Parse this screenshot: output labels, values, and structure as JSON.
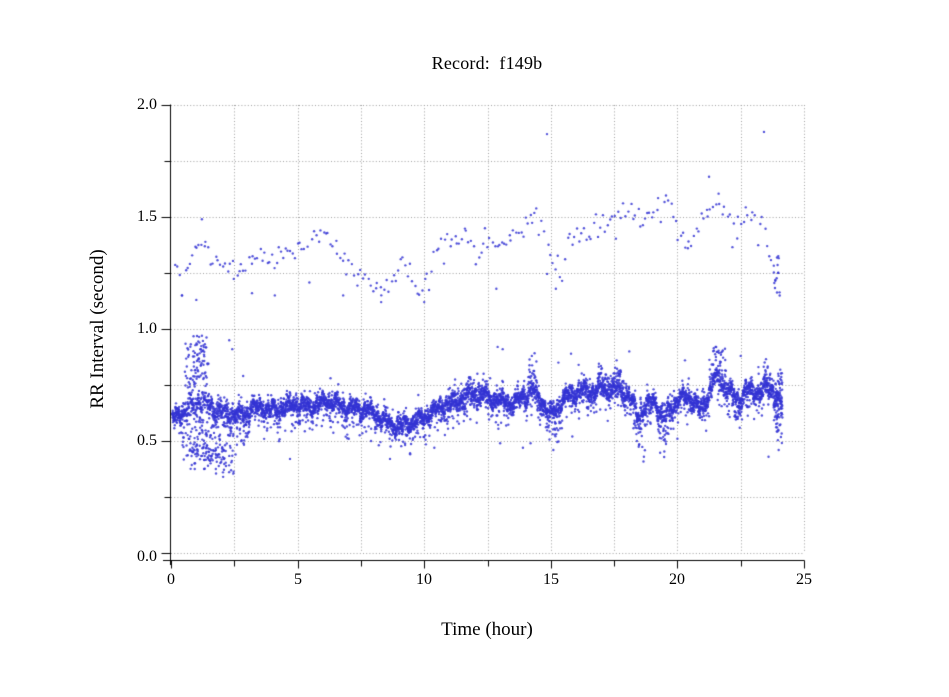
{
  "figure": {
    "background": "#ffffff"
  },
  "chart_data": {
    "type": "scatter",
    "title": "Record:  f149b",
    "xlabel": "Time (hour)",
    "ylabel": "RR Interval (second)",
    "xlim": [
      0,
      25
    ],
    "ylim": [
      0.0,
      2.0
    ],
    "xtick_labels": [
      "0",
      "5",
      "10",
      "15",
      "20",
      "25"
    ],
    "ytick_labels": [
      "0.0",
      "0.5",
      "1.0",
      "1.5",
      "2.0"
    ],
    "x_major_step": 5,
    "x_minor_step": 2.5,
    "y_major_step": 0.5,
    "y_minor_step": 0.25,
    "grid": {
      "on": true,
      "style": "dotted"
    },
    "legend": null,
    "colors": {
      "points": "#3434d3",
      "grid": "#9f9f9f",
      "axis": "#000000",
      "text": "#000000",
      "background": "#ffffff"
    },
    "marker": {
      "shape": "dot",
      "radius_px": 1.2,
      "alpha": 0.85
    },
    "series": [
      {
        "name": "rr-baseline-band",
        "description": "dense normal RR interval trace ~0.55-0.8 s over 24 h",
        "kind": "dense-band",
        "n_points": 6200,
        "center_curve": [
          [
            0.05,
            0.6
          ],
          [
            0.3,
            0.62
          ],
          [
            0.6,
            0.64
          ],
          [
            0.9,
            0.67
          ],
          [
            1.2,
            0.68
          ],
          [
            1.5,
            0.66
          ],
          [
            1.8,
            0.64
          ],
          [
            2.1,
            0.63
          ],
          [
            2.4,
            0.62
          ],
          [
            2.7,
            0.62
          ],
          [
            3.0,
            0.63
          ],
          [
            3.3,
            0.65
          ],
          [
            3.6,
            0.65
          ],
          [
            3.9,
            0.64
          ],
          [
            4.2,
            0.64
          ],
          [
            4.5,
            0.65
          ],
          [
            4.8,
            0.66
          ],
          [
            5.1,
            0.66
          ],
          [
            5.4,
            0.65
          ],
          [
            5.7,
            0.66
          ],
          [
            6.0,
            0.67
          ],
          [
            6.3,
            0.68
          ],
          [
            6.6,
            0.66
          ],
          [
            6.9,
            0.65
          ],
          [
            7.2,
            0.65
          ],
          [
            7.5,
            0.64
          ],
          [
            7.9,
            0.63
          ],
          [
            8.3,
            0.6
          ],
          [
            8.7,
            0.58
          ],
          [
            9.1,
            0.57
          ],
          [
            9.5,
            0.58
          ],
          [
            9.9,
            0.6
          ],
          [
            10.3,
            0.63
          ],
          [
            10.7,
            0.65
          ],
          [
            11.1,
            0.67
          ],
          [
            11.5,
            0.68
          ],
          [
            11.9,
            0.7
          ],
          [
            12.3,
            0.7
          ],
          [
            12.7,
            0.69
          ],
          [
            13.1,
            0.68
          ],
          [
            13.5,
            0.67
          ],
          [
            14.0,
            0.7
          ],
          [
            14.3,
            0.73
          ],
          [
            14.7,
            0.66
          ],
          [
            15.0,
            0.62
          ],
          [
            15.3,
            0.66
          ],
          [
            15.7,
            0.71
          ],
          [
            16.1,
            0.72
          ],
          [
            16.5,
            0.72
          ],
          [
            16.9,
            0.73
          ],
          [
            17.3,
            0.72
          ],
          [
            17.7,
            0.73
          ],
          [
            18.1,
            0.7
          ],
          [
            18.45,
            0.62
          ],
          [
            18.8,
            0.66
          ],
          [
            19.1,
            0.68
          ],
          [
            19.45,
            0.6
          ],
          [
            19.8,
            0.66
          ],
          [
            20.1,
            0.69
          ],
          [
            20.5,
            0.7
          ],
          [
            20.9,
            0.64
          ],
          [
            21.2,
            0.7
          ],
          [
            21.5,
            0.78
          ],
          [
            21.8,
            0.75
          ],
          [
            22.1,
            0.71
          ],
          [
            22.4,
            0.68
          ],
          [
            22.7,
            0.72
          ],
          [
            23.0,
            0.73
          ],
          [
            23.3,
            0.71
          ],
          [
            23.6,
            0.74
          ],
          [
            23.9,
            0.7
          ],
          [
            24.13,
            0.66
          ]
        ],
        "noise_sd": 0.017,
        "wiggle": [
          [
            9.7,
            0.016,
            0.5
          ],
          [
            23.0,
            0.012,
            2.1
          ],
          [
            53.0,
            0.009,
            4.2
          ]
        ],
        "down_spike": {
          "prob": 0.1,
          "min": 0.02,
          "max": 0.11
        },
        "up_spike": {
          "prob": 0.05,
          "min": 0.02,
          "max": 0.065
        },
        "down_bursts": [
          [
            0.45,
            2.5,
            0.27
          ],
          [
            2.6,
            3.1,
            0.12
          ],
          [
            14.85,
            15.4,
            0.13
          ],
          [
            18.25,
            18.95,
            0.14
          ],
          [
            19.3,
            19.65,
            0.15
          ],
          [
            22.25,
            22.5,
            0.13
          ],
          [
            23.8,
            24.13,
            0.17
          ]
        ],
        "up_bursts": [
          [
            0.55,
            1.45,
            0.27
          ],
          [
            11.2,
            12.5,
            0.07
          ],
          [
            14.1,
            14.5,
            0.13
          ],
          [
            16.8,
            17.9,
            0.08
          ],
          [
            21.25,
            21.95,
            0.16
          ],
          [
            23.4,
            23.75,
            0.08
          ]
        ]
      },
      {
        "name": "rr-long-interval-band",
        "description": "sparse band of long (doubled) RR intervals ~1.1-1.65 s",
        "kind": "sparse-band",
        "n_points": 258,
        "center_curve": [
          [
            0.15,
            1.28
          ],
          [
            0.45,
            1.21
          ],
          [
            0.8,
            1.36
          ],
          [
            1.1,
            1.38
          ],
          [
            1.35,
            1.35
          ],
          [
            1.7,
            1.31
          ],
          [
            2.0,
            1.29
          ],
          [
            2.4,
            1.27
          ],
          [
            2.7,
            1.28
          ],
          [
            3.0,
            1.3
          ],
          [
            3.5,
            1.32
          ],
          [
            4.0,
            1.3
          ],
          [
            4.5,
            1.33
          ],
          [
            5.0,
            1.36
          ],
          [
            5.5,
            1.39
          ],
          [
            6.1,
            1.45
          ],
          [
            6.5,
            1.35
          ],
          [
            6.9,
            1.28
          ],
          [
            7.3,
            1.26
          ],
          [
            7.7,
            1.22
          ],
          [
            8.1,
            1.18
          ],
          [
            8.5,
            1.16
          ],
          [
            8.9,
            1.26
          ],
          [
            9.2,
            1.29
          ],
          [
            9.6,
            1.19
          ],
          [
            9.9,
            1.18
          ],
          [
            10.3,
            1.28
          ],
          [
            10.7,
            1.38
          ],
          [
            11.1,
            1.42
          ],
          [
            11.4,
            1.44
          ],
          [
            11.8,
            1.38
          ],
          [
            12.2,
            1.37
          ],
          [
            12.6,
            1.42
          ],
          [
            13.0,
            1.38
          ],
          [
            13.3,
            1.38
          ],
          [
            13.6,
            1.42
          ],
          [
            13.9,
            1.44
          ],
          [
            14.2,
            1.49
          ],
          [
            14.5,
            1.48
          ],
          [
            14.8,
            1.4
          ],
          [
            15.1,
            1.28
          ],
          [
            15.4,
            1.27
          ],
          [
            15.7,
            1.38
          ],
          [
            16.0,
            1.43
          ],
          [
            16.3,
            1.45
          ],
          [
            16.6,
            1.43
          ],
          [
            16.9,
            1.44
          ],
          [
            17.2,
            1.46
          ],
          [
            17.5,
            1.5
          ],
          [
            17.8,
            1.52
          ],
          [
            18.1,
            1.55
          ],
          [
            18.4,
            1.52
          ],
          [
            18.7,
            1.49
          ],
          [
            19.0,
            1.53
          ],
          [
            19.3,
            1.56
          ],
          [
            19.6,
            1.58
          ],
          [
            19.9,
            1.5
          ],
          [
            20.15,
            1.42
          ],
          [
            20.45,
            1.36
          ],
          [
            20.75,
            1.44
          ],
          [
            21.1,
            1.52
          ],
          [
            21.4,
            1.56
          ],
          [
            21.7,
            1.58
          ],
          [
            22.0,
            1.53
          ],
          [
            22.3,
            1.47
          ],
          [
            22.6,
            1.5
          ],
          [
            22.9,
            1.52
          ],
          [
            23.2,
            1.47
          ],
          [
            23.5,
            1.4
          ],
          [
            23.7,
            1.32
          ],
          [
            23.9,
            1.24
          ],
          [
            24.05,
            1.18
          ]
        ],
        "noise_sd": 0.026,
        "wiggle": [],
        "down_spike": {
          "prob": 0.07,
          "min": 0.04,
          "max": 0.15
        },
        "up_spike": {
          "prob": 0.03,
          "min": 0.02,
          "max": 0.06
        },
        "down_bursts": [],
        "up_bursts": []
      },
      {
        "name": "startup-low-scatter",
        "description": "loose cloud of short intervals 0.38-0.53 s during first ~2.5 h",
        "kind": "cluster",
        "n_points": 80,
        "t_range": [
          0.42,
          2.47
        ],
        "t_dist": "tri",
        "v_range": [
          0.375,
          0.53
        ],
        "v_dist": "uniform"
      },
      {
        "name": "startup-high-scatter",
        "description": "burst of long-ish intervals 0.77-0.97 s near hour 1",
        "kind": "cluster",
        "n_points": 52,
        "t_range": [
          0.55,
          1.6
        ],
        "t_dist": "tri",
        "v_range": [
          0.765,
          0.97
        ],
        "v_dist": "pow"
      },
      {
        "name": "end-of-record-spread-main",
        "description": "wide vertical spread of baseline band at ~24 h",
        "kind": "cluster",
        "n_points": 42,
        "t_range": [
          23.86,
          24.16
        ],
        "t_dist": "uniform",
        "v_range": [
          0.53,
          0.82
        ],
        "v_dist": "uniform"
      },
      {
        "name": "end-of-record-spread-upper",
        "description": "descending tail of upper band at ~24 h",
        "kind": "cluster",
        "n_points": 13,
        "t_range": [
          23.72,
          24.1
        ],
        "t_dist": "uniform",
        "v_range": [
          1.1,
          1.33
        ],
        "v_dist": "uniform"
      },
      {
        "name": "isolated-points",
        "description": "scattered single beats between and outside the two bands",
        "kind": "points",
        "points": [
          [
            2.35,
            0.47
          ],
          [
            2.55,
            0.44
          ],
          [
            4.7,
            0.42
          ],
          [
            7.9,
            0.5
          ],
          [
            8.65,
            0.42
          ],
          [
            10.4,
            0.47
          ],
          [
            13.0,
            0.49
          ],
          [
            13.9,
            0.47
          ],
          [
            14.2,
            0.49
          ],
          [
            15.1,
            0.46
          ],
          [
            15.85,
            0.52
          ],
          [
            18.4,
            0.5
          ],
          [
            20.0,
            0.51
          ],
          [
            23.6,
            0.43
          ],
          [
            24.0,
            0.46
          ],
          [
            2.3,
            0.95
          ],
          [
            2.42,
            0.91
          ],
          [
            2.85,
            0.79
          ],
          [
            6.3,
            0.78
          ],
          [
            12.1,
            0.8
          ],
          [
            12.9,
            0.92
          ],
          [
            13.1,
            0.91
          ],
          [
            14.25,
            0.88
          ],
          [
            15.3,
            0.85
          ],
          [
            15.8,
            0.89
          ],
          [
            16.1,
            0.84
          ],
          [
            17.6,
            0.86
          ],
          [
            18.1,
            0.9
          ],
          [
            20.3,
            0.86
          ],
          [
            22.5,
            0.88
          ],
          [
            23.2,
            0.83
          ],
          [
            0.43,
            1.15
          ],
          [
            1.0,
            1.13
          ],
          [
            3.2,
            1.16
          ],
          [
            4.1,
            1.15
          ],
          [
            6.8,
            1.15
          ],
          [
            8.3,
            1.12
          ],
          [
            10.0,
            1.12
          ],
          [
            12.85,
            1.18
          ],
          [
            15.2,
            1.18
          ],
          [
            1.22,
            1.49
          ],
          [
            21.25,
            1.68
          ],
          [
            14.85,
            1.87
          ],
          [
            23.42,
            1.88
          ]
        ]
      }
    ]
  }
}
